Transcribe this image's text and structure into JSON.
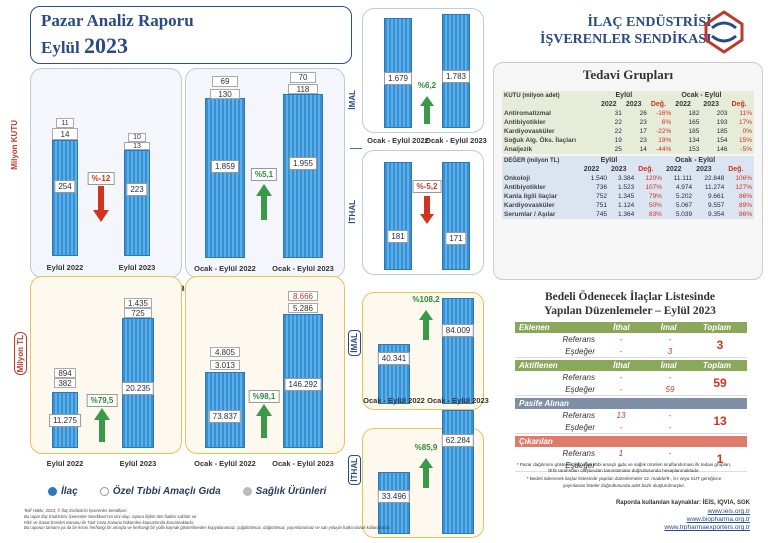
{
  "header": {
    "title_line1": "Pazar Analiz Raporu",
    "title_line2_text": "Eylül",
    "title_line2_year": "2023",
    "org_line1": "İLAÇ ENDÜSTRİSİ",
    "org_line2": "İŞVERENLER SENDİKASI"
  },
  "kutu": {
    "side_label": "Milyon KUTU",
    "monthly": {
      "bars": [
        {
          "label": "Eylül  2022",
          "main": "254",
          "mid": "14",
          "top": "11"
        },
        {
          "label": "Eylül  2023",
          "main": "223",
          "mid": "13",
          "top": "10"
        }
      ],
      "change": "%-12"
    },
    "ytd": {
      "bars": [
        {
          "label": "Ocak - Eylül  2022",
          "main": "1.859",
          "mid": "130",
          "top": "69"
        },
        {
          "label": "Ocak - Eylül  2023",
          "main": "1.955",
          "mid": "118",
          "top": "70"
        }
      ],
      "change": "%5,1"
    }
  },
  "tl": {
    "side_label": "Milyon TL",
    "monthly": {
      "bars": [
        {
          "label": "Eylül  2022",
          "main": "11.275",
          "mid": "382",
          "top": "894"
        },
        {
          "label": "Eylül  2023",
          "main": "20.235",
          "mid": "725",
          "top": "1.435"
        }
      ],
      "change": "%79,5"
    },
    "ytd": {
      "bars": [
        {
          "label": "Ocak - Eylül  2022",
          "main": "73.837",
          "mid": "3.013",
          "top": "4.805"
        },
        {
          "label": "Ocak - Eylül  2023",
          "main": "146.292",
          "mid": "5.286",
          "top": "8.666"
        }
      ],
      "change": "%98,1"
    }
  },
  "legend": {
    "item1": "İlaç",
    "item2": "Özel Tıbbi Amaçlı Gıda",
    "item3": "Sağlık Ürünleri"
  },
  "imal_ithal_kutu": {
    "imal_label": "İMAL",
    "ithal_label": "İTHAL",
    "imal_vals": [
      "1.679",
      "1.783"
    ],
    "imal_change": "%6,2",
    "ithal_vals": [
      "181",
      "171"
    ],
    "ithal_change": "%-5,2",
    "cat1": "Ocak - Eylül 2022",
    "cat2": "Ocak - Eylül 2023"
  },
  "imal_ithal_tl": {
    "imal_label": "İMAL",
    "ithal_label": "İTHAL",
    "imal_vals": [
      "40.341",
      "84.009"
    ],
    "imal_change": "%108,2",
    "ithal_vals": [
      "33.496",
      "62.284"
    ],
    "ithal_change": "%85,9",
    "cat1": "Ocak - Eylül 2022",
    "cat2": "Ocak - Eylül 2023"
  },
  "tedavi": {
    "title": "Tedavi Grupları",
    "kutu_header": "KUTU (milyon adet)",
    "deger_header": "DEĞER (milyon TL)",
    "col_eylul": "Eylül",
    "col_ocak": "Ocak - Eylül",
    "y22": "2022",
    "y23": "2023",
    "deg": "Değ.",
    "kutu_rows": [
      [
        "Antiromatizmal",
        "31",
        "26",
        "-16%",
        "182",
        "203",
        "11%"
      ],
      [
        "Antibiyotikler",
        "22",
        "23",
        "6%",
        "165",
        "193",
        "17%"
      ],
      [
        "Kardiyovasküler",
        "22",
        "17",
        "-22%",
        "185",
        "185",
        "0%"
      ],
      [
        "Soğuk Alg. Öks. İlaçları",
        "19",
        "23",
        "19%",
        "134",
        "154",
        "15%"
      ],
      [
        "Analjezik",
        "25",
        "14",
        "-44%",
        "153",
        "146",
        "-5%"
      ]
    ],
    "deger_rows": [
      [
        "Onkoloji",
        "1.540",
        "3.384",
        "120%",
        "11.111",
        "22.848",
        "106%"
      ],
      [
        "Antibiyotikler",
        "736",
        "1.523",
        "107%",
        "4.974",
        "11.274",
        "127%"
      ],
      [
        "Kanla ilgili ilaçlar",
        "752",
        "1.345",
        "79%",
        "5.202",
        "9.661",
        "86%"
      ],
      [
        "Kardiyovasküler",
        "751",
        "1.124",
        "50%",
        "5.067",
        "9.557",
        "89%"
      ],
      [
        "Serumlar / Aşılar",
        "745",
        "1.364",
        "83%",
        "5.039",
        "9.354",
        "86%"
      ]
    ]
  },
  "bedeli": {
    "title1": "Bedeli Ödenecek İlaçlar Listesinde",
    "title2": "Yapılan Düzenlemeler – Eylül 2023",
    "col_ithal": "İthal",
    "col_imal": "İmal",
    "col_toplam": "Toplam",
    "sub1": "Referans",
    "sub2": "Eşdeğer",
    "sections": [
      {
        "name": "Eklenen",
        "r_ithal": "-",
        "r_imal": "-",
        "e_ithal": "-",
        "e_imal": "3",
        "total": "3",
        "color": "#8aa85a"
      },
      {
        "name": "Aktiflenen",
        "r_ithal": "-",
        "r_imal": "-",
        "e_ithal": "-",
        "e_imal": "59",
        "total": "59",
        "color": "#8aa85a"
      },
      {
        "name": "Pasife Alınan",
        "r_ithal": "13",
        "r_imal": "-",
        "e_ithal": "-",
        "e_imal": "-",
        "total": "13",
        "color": "#7f8fa6"
      },
      {
        "name": "Çıkarılan",
        "r_ithal": "1",
        "r_imal": "-",
        "e_ithal": "-",
        "e_imal": "-",
        "total": "1",
        "color": "#e07a6a"
      }
    ]
  },
  "notes": {
    "n1": "* Pazar dağılımını gösteren ilaç, özel tıbbi amaçlı gıda ve sağlık ürünleri sınıflandırması ilk tedavi grupları,",
    "n2": "İEİS tarafından oluşturulan tanımlamalar doğrultusunda hesaplanmaktadır.",
    "n3": "* Bedeli ödenecek ilaçlar listesinde yapılan düzenlemeler 12. madde/9-, b-i veya SUT gereğince",
    "n4": "yayınlanan listeler doğrultusunda adet bazlı oluşturulmuştur.",
    "sources": "Raporda kullanılan kaynaklar: İEİS, IQVIA, SGK",
    "url1": "www.ieis.org.tr",
    "url2": "www.biopharma.org.tr",
    "url3": "www.trpharmaexporters.org.tr"
  },
  "footer": {
    "f1": "Telif Hakkı, 2023, © İlaç Endüstrisi İşverenler Sendikası",
    "f2": "Bu rapor İlaç Endüstrisi İşverenler Sendikası'nın izni olup, rapora ilişkin tüm haklar saklıdır ve",
    "f3": "Fikir ve Sanat Eserleri Kanunu ile Türk Ceza Kanunu hükümleri kapsamında korunmaktadır.",
    "f4": "Bu raporun tamamı ya da bir kısmı herhangi bir amaçla ve herhangi bir yolla kaynak gösterilmeden kopyalanamaz, çoğaltılamaz, dağıtılamaz, yayımlanamaz ve satı yoluyla halka olarak kullanılamaz."
  }
}
